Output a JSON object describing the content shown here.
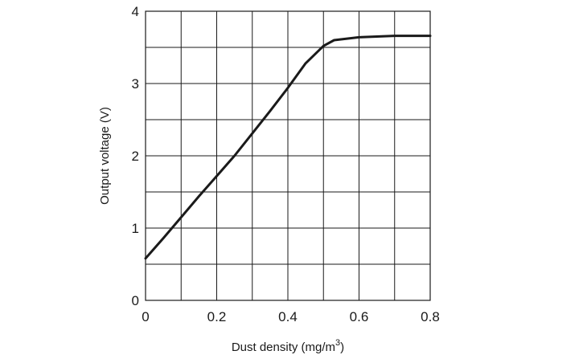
{
  "chart_data": {
    "type": "line",
    "xlabel": "Dust density (mg/m",
    "xlabel_sup": "3",
    "xlabel_end": ")",
    "ylabel": "Output voltage (V)",
    "xlim": [
      0,
      0.8
    ],
    "ylim": [
      0,
      4
    ],
    "x_ticks": [
      "0",
      "0.2",
      "0.4",
      "0.6",
      "0.8"
    ],
    "y_ticks": [
      "0",
      "1",
      "2",
      "3",
      "4"
    ],
    "x_minor_step": 0.1,
    "y_minor_step": 0.5,
    "grid": true,
    "series": [
      {
        "points": [
          [
            0.0,
            0.58
          ],
          [
            0.05,
            0.86
          ],
          [
            0.1,
            1.15
          ],
          [
            0.15,
            1.44
          ],
          [
            0.2,
            1.72
          ],
          [
            0.25,
            2.0
          ],
          [
            0.3,
            2.31
          ],
          [
            0.35,
            2.62
          ],
          [
            0.4,
            2.94
          ],
          [
            0.45,
            3.28
          ],
          [
            0.5,
            3.52
          ],
          [
            0.53,
            3.6
          ],
          [
            0.6,
            3.64
          ],
          [
            0.7,
            3.66
          ],
          [
            0.8,
            3.66
          ]
        ]
      }
    ]
  }
}
